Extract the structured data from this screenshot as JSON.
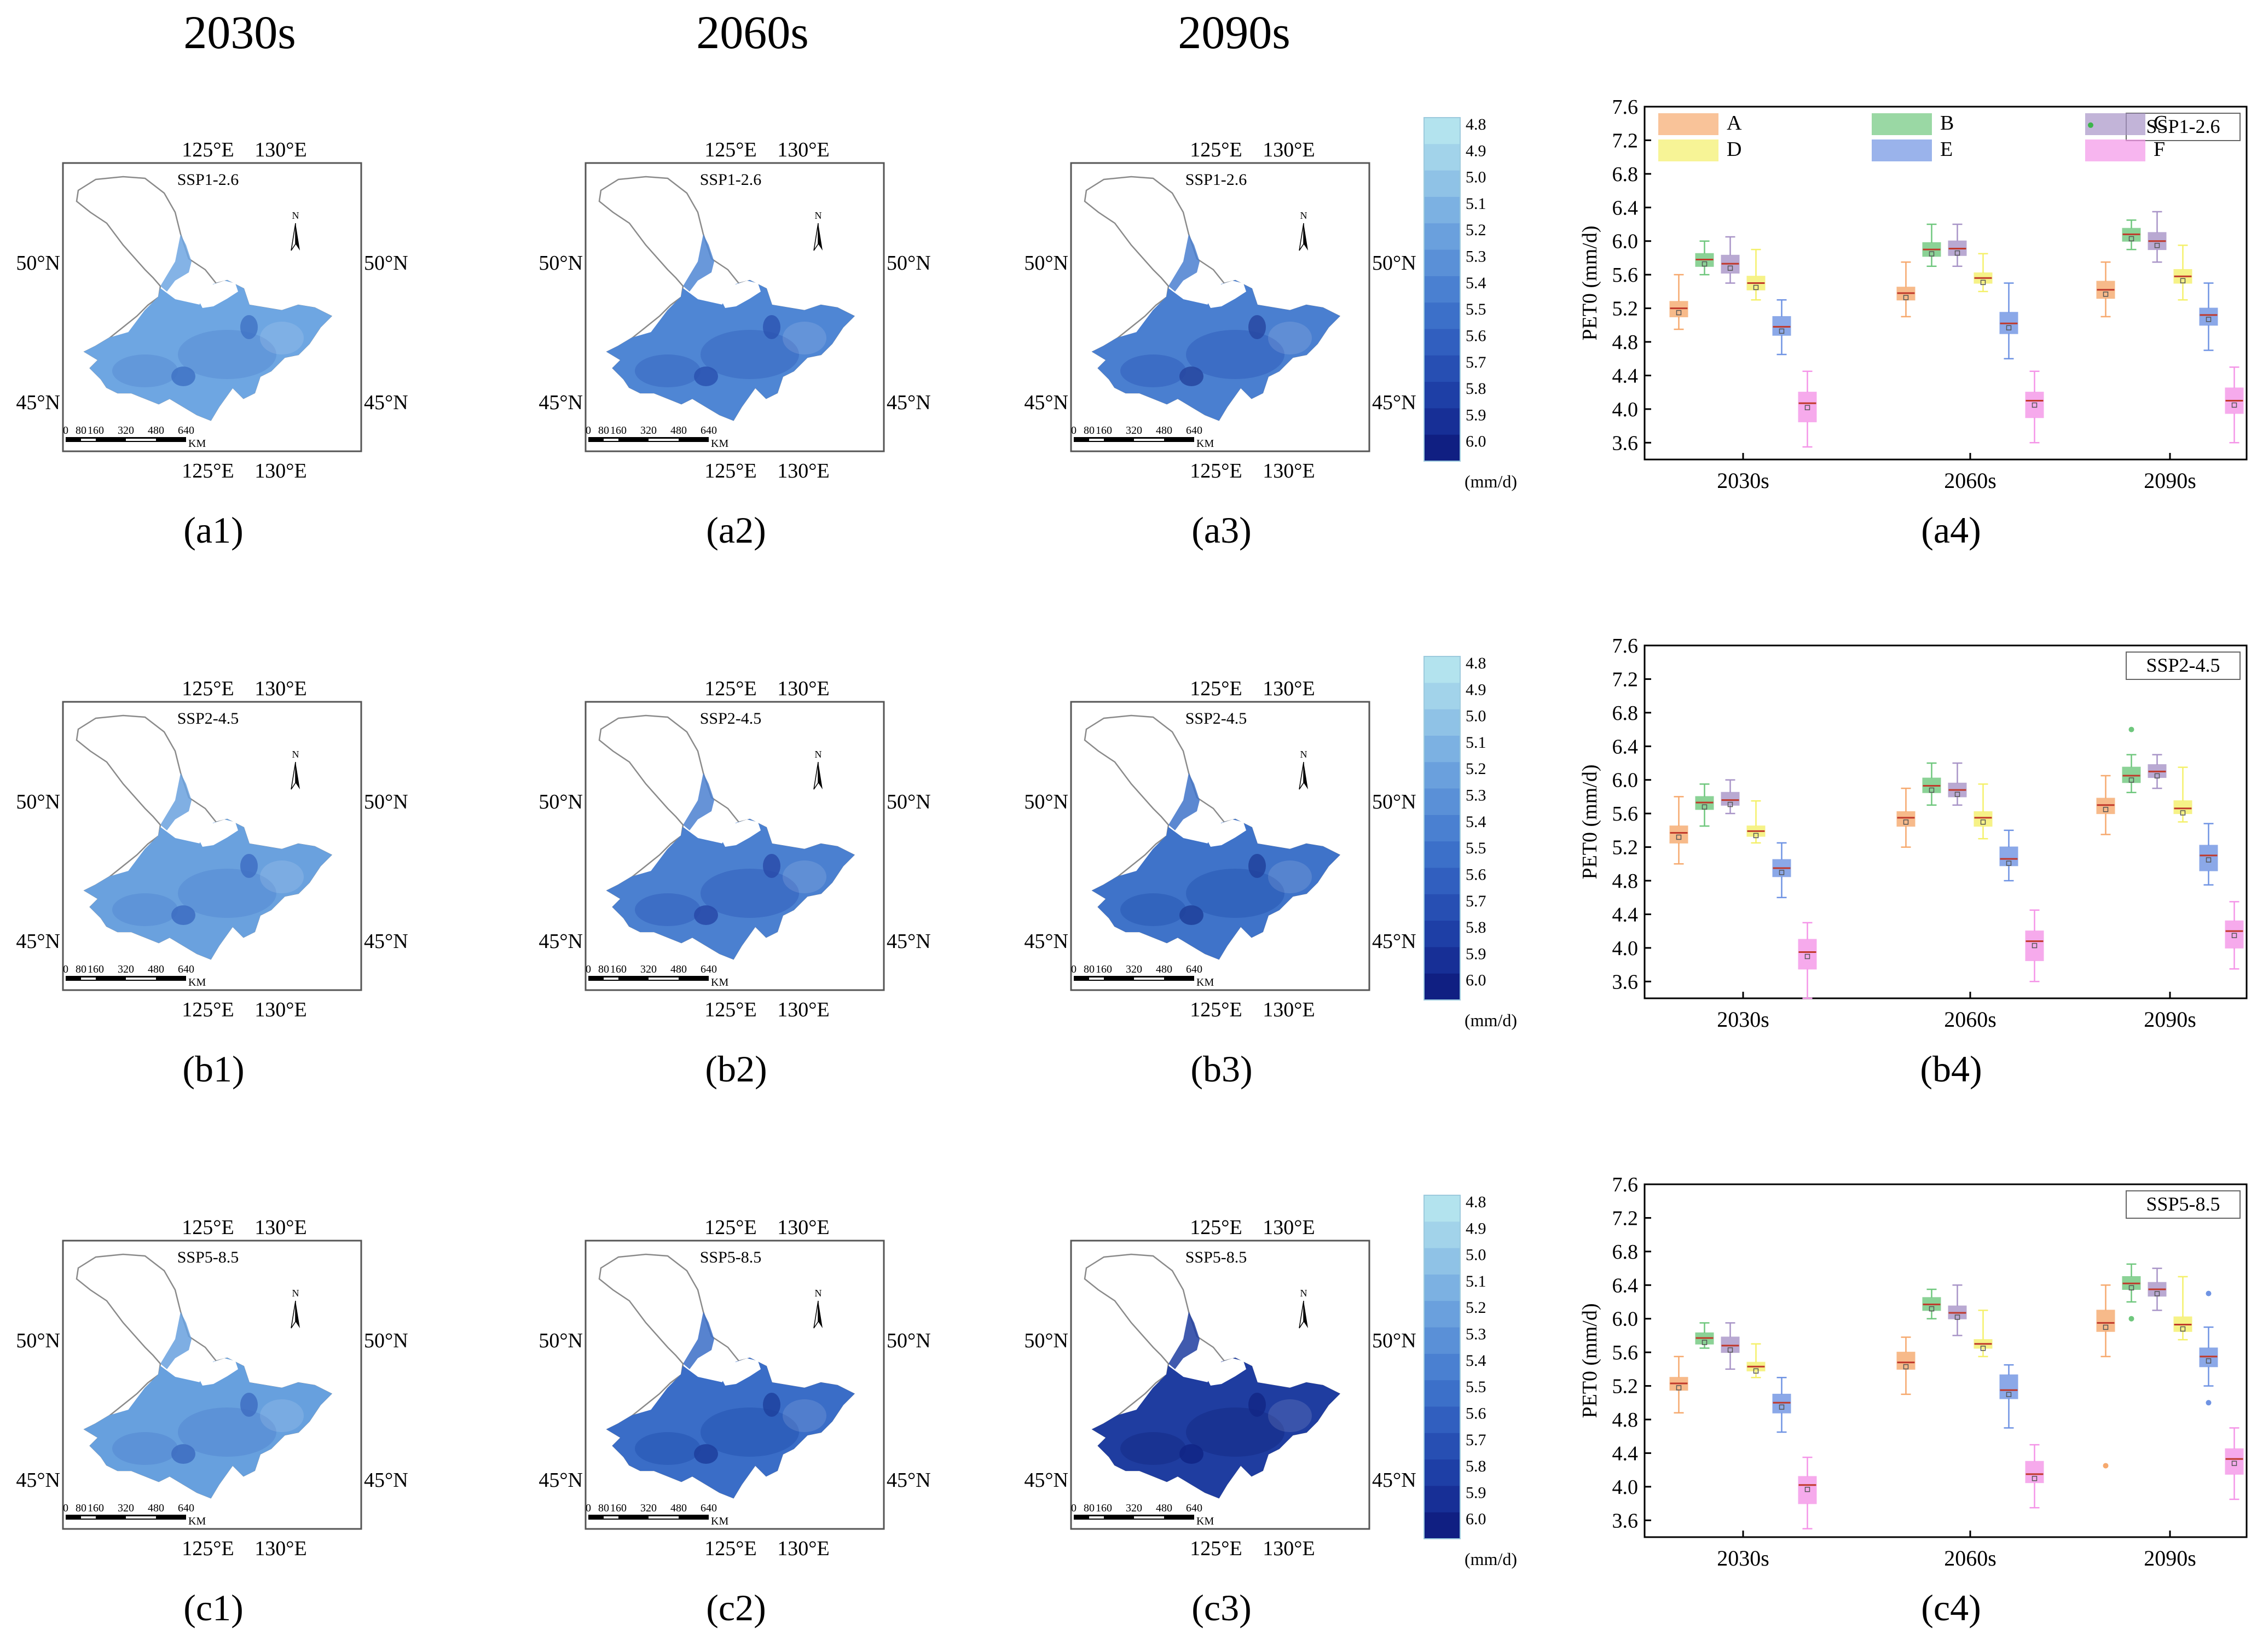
{
  "figure": {
    "column_headers": [
      "2030s",
      "2060s",
      "2090s"
    ],
    "map_lat_labels": [
      "50°N",
      "45°N"
    ],
    "map_lon_labels": [
      "125°E",
      "130°E"
    ],
    "scalebar_ticks": [
      "0",
      "80",
      "160",
      "320",
      "480",
      "640"
    ],
    "scalebar_unit": "KM",
    "north_label": "N",
    "colorbar": {
      "ticks": [
        "4.8",
        "4.9",
        "5.0",
        "5.1",
        "5.2",
        "5.3",
        "5.4",
        "5.5",
        "5.6",
        "5.7",
        "5.8",
        "5.9",
        "6.0"
      ],
      "unit": "(mm/d)",
      "colors": [
        "#b3e3ee",
        "#a2d3ea",
        "#8fc2e6",
        "#7cb1e2",
        "#6aa0dd",
        "#5a90d7",
        "#4a80d1",
        "#3c70c9",
        "#315fbf",
        "#274fb3",
        "#1e3fa6",
        "#172f96",
        "#101f82"
      ]
    },
    "rows": [
      {
        "scenario": "SSP1-2.6",
        "maps": [
          {
            "label": "(a1)",
            "fill": "#6ea6e2",
            "patch": "#5f95d8",
            "hot": "#3f72c4"
          },
          {
            "label": "(a2)",
            "fill": "#4f86d4",
            "patch": "#3e70c6",
            "hot": "#2a52b0"
          },
          {
            "label": "(a3)",
            "fill": "#4a7fd0",
            "patch": "#3869c2",
            "hot": "#26459f"
          }
        ],
        "box_label": "(a4)"
      },
      {
        "scenario": "SSP2-4.5",
        "maps": [
          {
            "label": "(b1)",
            "fill": "#6aa1de",
            "patch": "#5b91d6",
            "hot": "#3c6cc2"
          },
          {
            "label": "(b2)",
            "fill": "#4b80d0",
            "patch": "#3a69c2",
            "hot": "#2849a8"
          },
          {
            "label": "(b3)",
            "fill": "#3f73c9",
            "patch": "#3060ba",
            "hot": "#1f3f9a"
          }
        ],
        "box_label": "(b4)"
      },
      {
        "scenario": "SSP5-8.5",
        "maps": [
          {
            "label": "(c1)",
            "fill": "#67a0de",
            "patch": "#5a8fd5",
            "hot": "#3d6cc1"
          },
          {
            "label": "(c2)",
            "fill": "#3a6dc7",
            "patch": "#2c5bb8",
            "hot": "#1d3e9c"
          },
          {
            "label": "(c3)",
            "fill": "#1f3da0",
            "patch": "#18318f",
            "hot": "#112585"
          }
        ],
        "box_label": "(c4)"
      }
    ]
  },
  "chart_data": {
    "type": "box",
    "ylabel": "PET0 (mm/d)",
    "ylim": [
      3.4,
      7.6
    ],
    "yticks": [
      "7.6",
      "7.2",
      "6.8",
      "6.4",
      "6.0",
      "5.6",
      "5.2",
      "4.8",
      "4.4",
      "4.0",
      "3.6"
    ],
    "categories": [
      "2030s",
      "2060s",
      "2090s"
    ],
    "legend": [
      {
        "name": "A",
        "color": "#f6a96e"
      },
      {
        "name": "B",
        "color": "#6fc77d"
      },
      {
        "name": "C",
        "color": "#a894c7"
      },
      {
        "name": "D",
        "color": "#f4f06a"
      },
      {
        "name": "E",
        "color": "#6f93e3"
      },
      {
        "name": "F",
        "color": "#f495e8"
      }
    ],
    "panels": [
      {
        "scenario": "SSP1-2.6",
        "periods": [
          {
            "period": "2030s",
            "boxes": [
              {
                "series": "A",
                "min": 4.95,
                "q1": 5.1,
                "median": 5.2,
                "q3": 5.28,
                "max": 5.6
              },
              {
                "series": "B",
                "min": 5.6,
                "q1": 5.7,
                "median": 5.78,
                "q3": 5.85,
                "max": 6.0
              },
              {
                "series": "C",
                "min": 5.5,
                "q1": 5.62,
                "median": 5.73,
                "q3": 5.83,
                "max": 6.05
              },
              {
                "series": "D",
                "min": 5.3,
                "q1": 5.42,
                "median": 5.5,
                "q3": 5.58,
                "max": 5.9
              },
              {
                "series": "E",
                "min": 4.65,
                "q1": 4.88,
                "median": 4.98,
                "q3": 5.1,
                "max": 5.3
              },
              {
                "series": "F",
                "min": 3.55,
                "q1": 3.85,
                "median": 4.07,
                "q3": 4.2,
                "max": 4.45
              }
            ]
          },
          {
            "period": "2060s",
            "boxes": [
              {
                "series": "A",
                "min": 5.1,
                "q1": 5.3,
                "median": 5.38,
                "q3": 5.45,
                "max": 5.75
              },
              {
                "series": "B",
                "min": 5.7,
                "q1": 5.82,
                "median": 5.9,
                "q3": 5.98,
                "max": 6.2
              },
              {
                "series": "C",
                "min": 5.7,
                "q1": 5.83,
                "median": 5.91,
                "q3": 6.0,
                "max": 6.2
              },
              {
                "series": "D",
                "min": 5.4,
                "q1": 5.5,
                "median": 5.56,
                "q3": 5.62,
                "max": 5.85
              },
              {
                "series": "E",
                "min": 4.6,
                "q1": 4.9,
                "median": 5.02,
                "q3": 5.15,
                "max": 5.5
              },
              {
                "series": "F",
                "min": 3.6,
                "q1": 3.9,
                "median": 4.1,
                "q3": 4.2,
                "max": 4.45
              }
            ]
          },
          {
            "period": "2090s",
            "boxes": [
              {
                "series": "A",
                "min": 5.1,
                "q1": 5.32,
                "median": 5.42,
                "q3": 5.52,
                "max": 5.75
              },
              {
                "series": "B",
                "min": 5.9,
                "q1": 6.0,
                "median": 6.08,
                "q3": 6.15,
                "max": 6.25
              },
              {
                "series": "C",
                "min": 5.75,
                "q1": 5.9,
                "median": 6.0,
                "q3": 6.1,
                "max": 6.35
              },
              {
                "series": "D",
                "min": 5.3,
                "q1": 5.5,
                "median": 5.58,
                "q3": 5.66,
                "max": 5.95
              },
              {
                "series": "E",
                "min": 4.7,
                "q1": 5.0,
                "median": 5.12,
                "q3": 5.2,
                "max": 5.5
              },
              {
                "series": "F",
                "min": 3.6,
                "q1": 3.95,
                "median": 4.1,
                "q3": 4.25,
                "max": 4.5
              }
            ]
          }
        ]
      },
      {
        "scenario": "SSP2-4.5",
        "periods": [
          {
            "period": "2030s",
            "boxes": [
              {
                "series": "A",
                "min": 5.0,
                "q1": 5.25,
                "median": 5.37,
                "q3": 5.45,
                "max": 5.8
              },
              {
                "series": "B",
                "min": 5.45,
                "q1": 5.65,
                "median": 5.73,
                "q3": 5.8,
                "max": 5.95
              },
              {
                "series": "C",
                "min": 5.6,
                "q1": 5.7,
                "median": 5.76,
                "q3": 5.85,
                "max": 6.0
              },
              {
                "series": "D",
                "min": 5.25,
                "q1": 5.33,
                "median": 5.39,
                "q3": 5.45,
                "max": 5.75
              },
              {
                "series": "E",
                "min": 4.6,
                "q1": 4.85,
                "median": 4.95,
                "q3": 5.05,
                "max": 5.25
              },
              {
                "series": "F",
                "min": 3.4,
                "q1": 3.75,
                "median": 3.95,
                "q3": 4.1,
                "max": 4.3
              }
            ]
          },
          {
            "period": "2060s",
            "boxes": [
              {
                "series": "A",
                "min": 5.2,
                "q1": 5.45,
                "median": 5.55,
                "q3": 5.62,
                "max": 5.9
              },
              {
                "series": "B",
                "min": 5.7,
                "q1": 5.85,
                "median": 5.93,
                "q3": 6.02,
                "max": 6.2
              },
              {
                "series": "C",
                "min": 5.7,
                "q1": 5.8,
                "median": 5.88,
                "q3": 5.96,
                "max": 6.2
              },
              {
                "series": "D",
                "min": 5.3,
                "q1": 5.45,
                "median": 5.55,
                "q3": 5.62,
                "max": 5.95
              },
              {
                "series": "E",
                "min": 4.8,
                "q1": 4.98,
                "median": 5.06,
                "q3": 5.2,
                "max": 5.4
              },
              {
                "series": "F",
                "min": 3.6,
                "q1": 3.85,
                "median": 4.08,
                "q3": 4.2,
                "max": 4.45
              }
            ]
          },
          {
            "period": "2090s",
            "boxes": [
              {
                "series": "A",
                "min": 5.35,
                "q1": 5.6,
                "median": 5.7,
                "q3": 5.78,
                "max": 6.05
              },
              {
                "series": "B",
                "min": 5.85,
                "q1": 5.97,
                "median": 6.05,
                "q3": 6.15,
                "max": 6.3,
                "outliers": [
                  6.6
                ]
              },
              {
                "series": "C",
                "min": 5.9,
                "q1": 6.03,
                "median": 6.1,
                "q3": 6.18,
                "max": 6.3
              },
              {
                "series": "D",
                "min": 5.5,
                "q1": 5.6,
                "median": 5.66,
                "q3": 5.75,
                "max": 6.15
              },
              {
                "series": "E",
                "min": 4.75,
                "q1": 4.92,
                "median": 5.1,
                "q3": 5.22,
                "max": 5.48
              },
              {
                "series": "F",
                "min": 3.75,
                "q1": 4.0,
                "median": 4.2,
                "q3": 4.32,
                "max": 4.55
              }
            ]
          }
        ]
      },
      {
        "scenario": "SSP5-8.5",
        "periods": [
          {
            "period": "2030s",
            "boxes": [
              {
                "series": "A",
                "min": 4.88,
                "q1": 5.15,
                "median": 5.23,
                "q3": 5.3,
                "max": 5.55
              },
              {
                "series": "B",
                "min": 5.65,
                "q1": 5.7,
                "median": 5.77,
                "q3": 5.83,
                "max": 5.95
              },
              {
                "series": "C",
                "min": 5.4,
                "q1": 5.6,
                "median": 5.68,
                "q3": 5.78,
                "max": 5.95
              },
              {
                "series": "D",
                "min": 5.3,
                "q1": 5.38,
                "median": 5.43,
                "q3": 5.48,
                "max": 5.7
              },
              {
                "series": "E",
                "min": 4.65,
                "q1": 4.88,
                "median": 5.0,
                "q3": 5.1,
                "max": 5.3
              },
              {
                "series": "F",
                "min": 3.5,
                "q1": 3.8,
                "median": 4.02,
                "q3": 4.12,
                "max": 4.35
              }
            ]
          },
          {
            "period": "2060s",
            "boxes": [
              {
                "series": "A",
                "min": 5.1,
                "q1": 5.4,
                "median": 5.48,
                "q3": 5.6,
                "max": 5.78
              },
              {
                "series": "B",
                "min": 6.0,
                "q1": 6.1,
                "median": 6.17,
                "q3": 6.25,
                "max": 6.35
              },
              {
                "series": "C",
                "min": 5.8,
                "q1": 6.0,
                "median": 6.07,
                "q3": 6.15,
                "max": 6.4
              },
              {
                "series": "D",
                "min": 5.55,
                "q1": 5.65,
                "median": 5.7,
                "q3": 5.75,
                "max": 6.1
              },
              {
                "series": "E",
                "min": 4.7,
                "q1": 5.05,
                "median": 5.15,
                "q3": 5.33,
                "max": 5.45
              },
              {
                "series": "F",
                "min": 3.75,
                "q1": 4.05,
                "median": 4.15,
                "q3": 4.3,
                "max": 4.5
              }
            ]
          },
          {
            "period": "2090s",
            "boxes": [
              {
                "series": "A",
                "min": 5.55,
                "q1": 5.85,
                "median": 5.95,
                "q3": 6.1,
                "max": 6.4,
                "outliers": [
                  4.25
                ]
              },
              {
                "series": "B",
                "min": 6.2,
                "q1": 6.35,
                "median": 6.42,
                "q3": 6.5,
                "max": 6.65,
                "outliers": [
                  6.0
                ]
              },
              {
                "series": "C",
                "min": 6.1,
                "q1": 6.27,
                "median": 6.35,
                "q3": 6.43,
                "max": 6.6
              },
              {
                "series": "D",
                "min": 5.75,
                "q1": 5.85,
                "median": 5.93,
                "q3": 6.02,
                "max": 6.5
              },
              {
                "series": "E",
                "min": 5.2,
                "q1": 5.43,
                "median": 5.55,
                "q3": 5.65,
                "max": 5.9,
                "outliers": [
                  6.3,
                  5.0
                ]
              },
              {
                "series": "F",
                "min": 3.85,
                "q1": 4.15,
                "median": 4.33,
                "q3": 4.45,
                "max": 4.7
              }
            ]
          }
        ]
      }
    ]
  }
}
